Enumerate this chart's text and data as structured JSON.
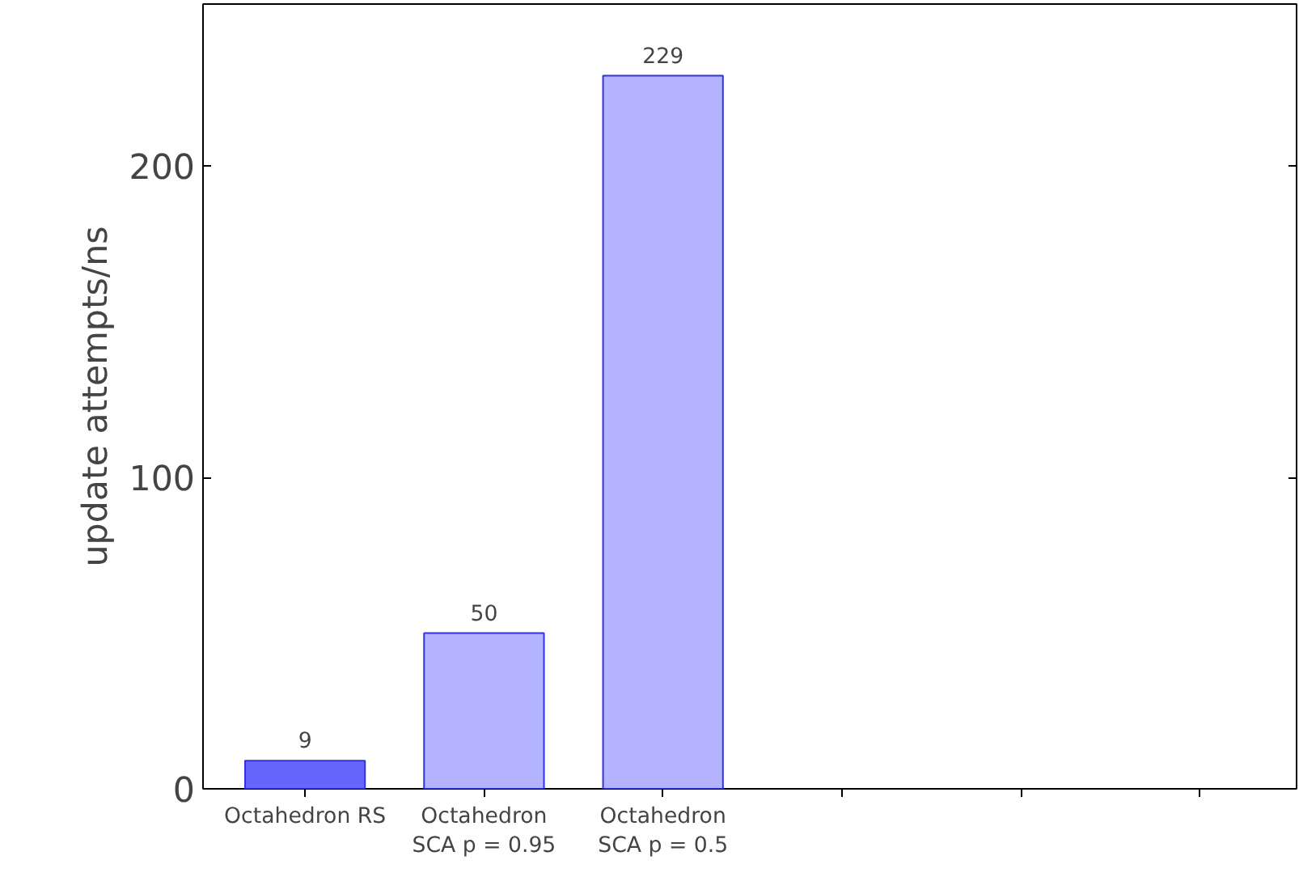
{
  "chart_data": {
    "type": "bar",
    "ylabel": "update attempts/ns",
    "categories": [
      "Octahedron RS",
      "Octahedron\nSCA p = 0.95",
      "Octahedron\nSCA p = 0.5",
      null,
      null,
      null
    ],
    "values": [
      9,
      50,
      229,
      null,
      null,
      null
    ],
    "colors": [
      "#6666ff",
      "#b3b3ff",
      "#b3b3ff",
      null,
      null,
      null
    ],
    "ylim": [
      0,
      252
    ],
    "yticks": [
      0,
      100,
      200
    ],
    "data_labels": true,
    "grid": false
  }
}
